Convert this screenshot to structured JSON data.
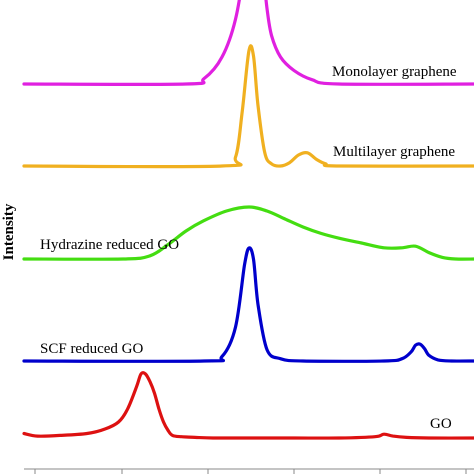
{
  "chart_data": {
    "type": "line",
    "title": "",
    "xlabel": "",
    "ylabel": "Intensity",
    "ytick_labels": false,
    "grid": false,
    "legend": "none",
    "xlim": [
      0,
      100
    ],
    "series": [
      {
        "name": "Monolayer graphene",
        "color": "#e020e0",
        "x": [
          0,
          36,
          40,
          44,
          47,
          49,
          50,
          51,
          52,
          53,
          54,
          55,
          57,
          60,
          64,
          70,
          100
        ],
        "y": [
          0.0,
          0.0,
          0.1,
          0.5,
          1.2,
          2.2,
          3.0,
          4.2,
          3.0,
          2.2,
          1.4,
          0.9,
          0.5,
          0.25,
          0.08,
          0.0,
          0.0
        ]
      },
      {
        "name": "Multilayer graphene",
        "color": "#f0b020",
        "x": [
          0,
          44,
          47,
          48.5,
          50,
          51,
          52,
          53.5,
          55,
          57,
          59,
          61,
          63,
          65,
          67,
          70,
          100
        ],
        "y": [
          0.0,
          0.0,
          0.08,
          0.5,
          1.05,
          1.0,
          0.55,
          0.12,
          0.02,
          0.0,
          0.03,
          0.1,
          0.12,
          0.06,
          0.02,
          0.0,
          0.0
        ]
      },
      {
        "name": "Hydrazine reduced GO",
        "color": "#44dd11",
        "x": [
          0,
          22,
          28,
          32,
          36,
          40,
          45,
          50,
          54,
          58,
          62,
          66,
          70,
          75,
          80,
          84,
          87,
          90,
          93,
          96,
          100
        ],
        "y": [
          0.0,
          0.0,
          0.04,
          0.18,
          0.35,
          0.48,
          0.6,
          0.65,
          0.6,
          0.5,
          0.4,
          0.32,
          0.26,
          0.2,
          0.14,
          0.14,
          0.16,
          0.08,
          0.02,
          0.0,
          0.0
        ]
      },
      {
        "name": "SCF reduced GO",
        "color": "#0000cc",
        "x": [
          0,
          40,
          44,
          47,
          49,
          50,
          51,
          52,
          54,
          57,
          62,
          80,
          84,
          86,
          87,
          88,
          89,
          90,
          92,
          95,
          100
        ],
        "y": [
          0.0,
          0.0,
          0.04,
          0.3,
          0.85,
          1.0,
          0.9,
          0.5,
          0.1,
          0.02,
          0.0,
          0.0,
          0.02,
          0.08,
          0.14,
          0.15,
          0.11,
          0.05,
          0.01,
          0.0,
          0.0
        ]
      },
      {
        "name": "GO",
        "color": "#dd1111",
        "x": [
          0,
          3,
          8,
          14,
          18,
          21,
          23,
          25,
          26,
          27,
          28,
          29,
          30,
          31,
          32,
          33,
          35,
          38,
          42,
          50,
          60,
          70,
          78,
          80,
          82,
          85,
          90,
          100
        ],
        "y": [
          0.07,
          0.03,
          0.04,
          0.07,
          0.14,
          0.25,
          0.45,
          0.8,
          1.0,
          1.0,
          0.88,
          0.7,
          0.45,
          0.25,
          0.12,
          0.04,
          0.02,
          0.01,
          0.0,
          0.0,
          0.0,
          0.0,
          0.02,
          0.06,
          0.03,
          0.01,
          0.0,
          0.0
        ]
      }
    ]
  }
}
